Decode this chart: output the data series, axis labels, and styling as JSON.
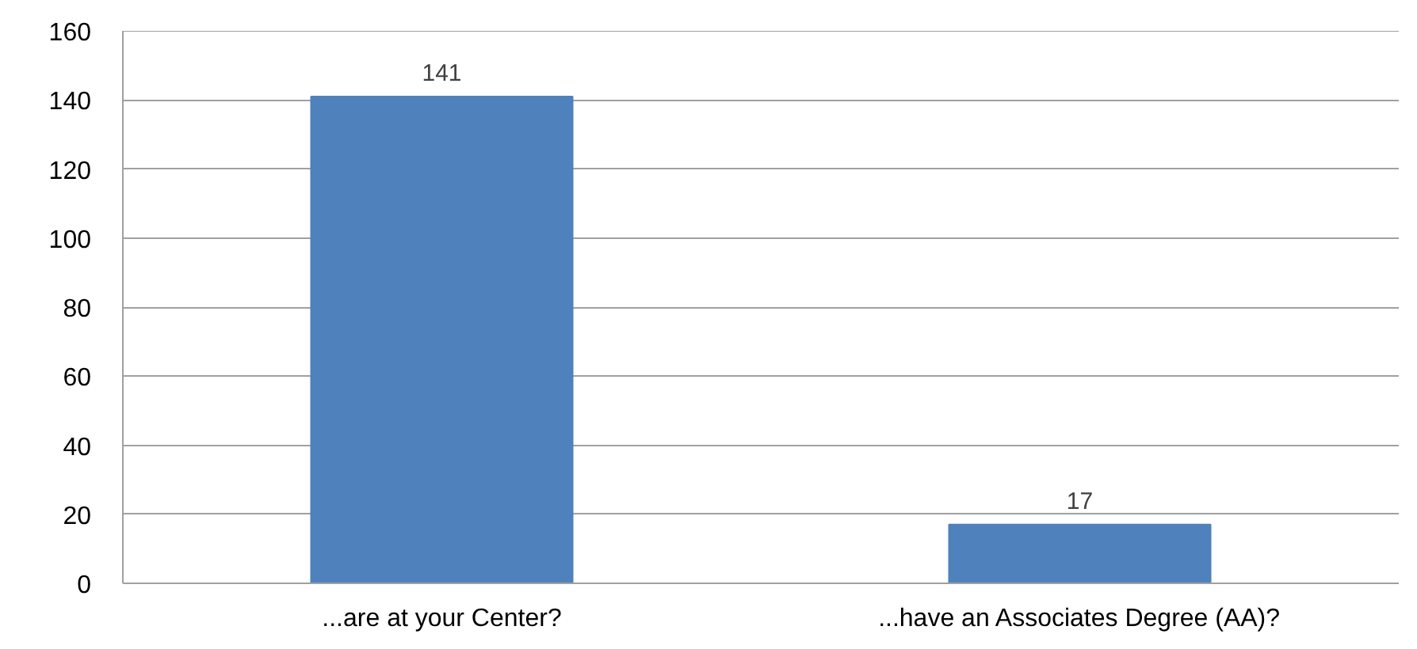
{
  "chart_data": {
    "type": "bar",
    "categories": [
      "...are at your Center?",
      "...have an Associates Degree (AA)?"
    ],
    "values": [
      141,
      17
    ],
    "color": "#4f81bd",
    "ylim": [
      0,
      160
    ],
    "yticks": [
      0,
      20,
      40,
      60,
      80,
      100,
      120,
      140,
      160
    ],
    "grid": "y",
    "data_labels": true
  }
}
